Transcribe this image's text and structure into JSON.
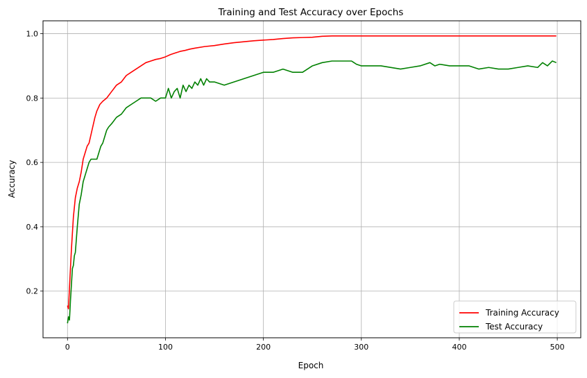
{
  "chart_data": {
    "type": "line",
    "title": "Training and Test Accuracy over Epochs",
    "xlabel": "Epoch",
    "ylabel": "Accuracy",
    "xlim": [
      -25,
      524
    ],
    "ylim": [
      0.055,
      1.04
    ],
    "xticks": [
      0,
      100,
      200,
      300,
      400,
      500
    ],
    "yticks": [
      0.2,
      0.4,
      0.6,
      0.8,
      1.0
    ],
    "xtick_labels": [
      "0",
      "100",
      "200",
      "300",
      "400",
      "500"
    ],
    "ytick_labels": [
      "0.2",
      "0.4",
      "0.6",
      "0.8",
      "1.0"
    ],
    "grid": true,
    "legend_position": "lower-right",
    "series": [
      {
        "name": "Training Accuracy",
        "color": "#ff0000",
        "x": [
          0,
          1,
          2,
          3,
          4,
          5,
          6,
          7,
          8,
          10,
          12,
          14,
          16,
          18,
          20,
          22,
          25,
          28,
          30,
          33,
          36,
          40,
          45,
          50,
          55,
          60,
          65,
          70,
          75,
          80,
          85,
          90,
          95,
          100,
          105,
          110,
          115,
          120,
          125,
          130,
          140,
          150,
          160,
          170,
          180,
          190,
          200,
          210,
          220,
          230,
          240,
          250,
          260,
          270,
          280,
          290,
          300,
          350,
          400,
          450,
          499
        ],
        "y": [
          0.155,
          0.145,
          0.21,
          0.27,
          0.33,
          0.38,
          0.43,
          0.46,
          0.49,
          0.52,
          0.54,
          0.57,
          0.61,
          0.63,
          0.65,
          0.66,
          0.7,
          0.74,
          0.76,
          0.78,
          0.79,
          0.8,
          0.82,
          0.84,
          0.85,
          0.87,
          0.88,
          0.89,
          0.9,
          0.91,
          0.915,
          0.92,
          0.923,
          0.928,
          0.935,
          0.94,
          0.945,
          0.948,
          0.952,
          0.955,
          0.96,
          0.963,
          0.968,
          0.972,
          0.975,
          0.978,
          0.98,
          0.982,
          0.985,
          0.987,
          0.988,
          0.989,
          0.992,
          0.993,
          0.993,
          0.993,
          0.993,
          0.993,
          0.993,
          0.993,
          0.993
        ]
      },
      {
        "name": "Test Accuracy",
        "color": "#008000",
        "x": [
          0,
          1,
          2,
          3,
          4,
          5,
          6,
          7,
          8,
          9,
          10,
          12,
          14,
          16,
          18,
          20,
          22,
          24,
          26,
          28,
          30,
          32,
          34,
          36,
          38,
          40,
          42,
          45,
          50,
          55,
          60,
          65,
          70,
          75,
          80,
          85,
          90,
          95,
          100,
          103,
          106,
          109,
          112,
          115,
          118,
          121,
          124,
          127,
          130,
          133,
          136,
          139,
          142,
          145,
          150,
          160,
          170,
          180,
          190,
          200,
          210,
          220,
          230,
          240,
          250,
          260,
          270,
          280,
          290,
          295,
          300,
          320,
          340,
          350,
          360,
          370,
          375,
          380,
          390,
          400,
          410,
          420,
          430,
          440,
          450,
          460,
          470,
          480,
          485,
          490,
          495,
          499
        ],
        "y": [
          0.1,
          0.12,
          0.11,
          0.17,
          0.22,
          0.27,
          0.28,
          0.31,
          0.32,
          0.36,
          0.4,
          0.47,
          0.5,
          0.54,
          0.56,
          0.58,
          0.6,
          0.61,
          0.61,
          0.61,
          0.61,
          0.63,
          0.65,
          0.66,
          0.68,
          0.7,
          0.71,
          0.72,
          0.74,
          0.75,
          0.77,
          0.78,
          0.79,
          0.8,
          0.8,
          0.8,
          0.79,
          0.8,
          0.8,
          0.83,
          0.8,
          0.82,
          0.83,
          0.8,
          0.84,
          0.82,
          0.84,
          0.83,
          0.85,
          0.84,
          0.86,
          0.84,
          0.86,
          0.85,
          0.85,
          0.84,
          0.85,
          0.86,
          0.87,
          0.88,
          0.88,
          0.89,
          0.88,
          0.88,
          0.9,
          0.91,
          0.915,
          0.915,
          0.915,
          0.905,
          0.9,
          0.9,
          0.89,
          0.895,
          0.9,
          0.91,
          0.9,
          0.905,
          0.9,
          0.9,
          0.9,
          0.89,
          0.895,
          0.89,
          0.89,
          0.895,
          0.9,
          0.895,
          0.91,
          0.9,
          0.915,
          0.91
        ]
      }
    ]
  }
}
